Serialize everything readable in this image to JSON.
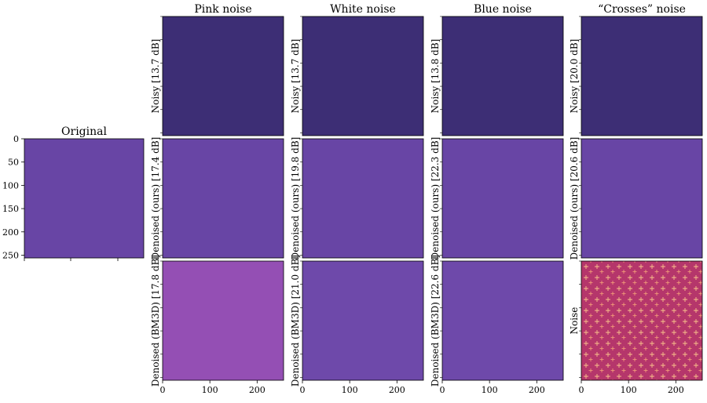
{
  "figure": {
    "original": {
      "title": "Original",
      "y_ticks": [
        "0",
        "50",
        "100",
        "150",
        "200",
        "250"
      ]
    },
    "columns": [
      {
        "title": "Pink noise",
        "rows": [
          {
            "label": "Noisy [13.7 dB]",
            "texture": "noisy"
          },
          {
            "label": "Denoised (ours) [17.4 dB]",
            "texture": "denoised"
          },
          {
            "label": "Denoised (BM3D) [17.8 dB]",
            "texture": "blur"
          }
        ]
      },
      {
        "title": "White noise",
        "rows": [
          {
            "label": "Noisy [13.7 dB]",
            "texture": "noisy"
          },
          {
            "label": "Denoised (ours) [19.8 dB]",
            "texture": "denoised"
          },
          {
            "label": "Denoised (BM3D) [21.0 dB]",
            "texture": "bm3d"
          }
        ]
      },
      {
        "title": "Blue noise",
        "rows": [
          {
            "label": "Noisy [13.8 dB]",
            "texture": "noisy"
          },
          {
            "label": "Denoised (ours) [22.3 dB]",
            "texture": "denoised"
          },
          {
            "label": "Denoised (BM3D) [22.6 dB]",
            "texture": "bm3d"
          }
        ]
      },
      {
        "title": "“Crosses” noise",
        "rows": [
          {
            "label": "Noisy [20.0 dB]",
            "texture": "noisy"
          },
          {
            "label": "Denoised (ours) [20.6 dB]",
            "texture": "denoised"
          },
          {
            "label": "Noise",
            "texture": "crosses"
          }
        ]
      }
    ],
    "x_ticks": [
      "0",
      "100",
      "200"
    ]
  }
}
